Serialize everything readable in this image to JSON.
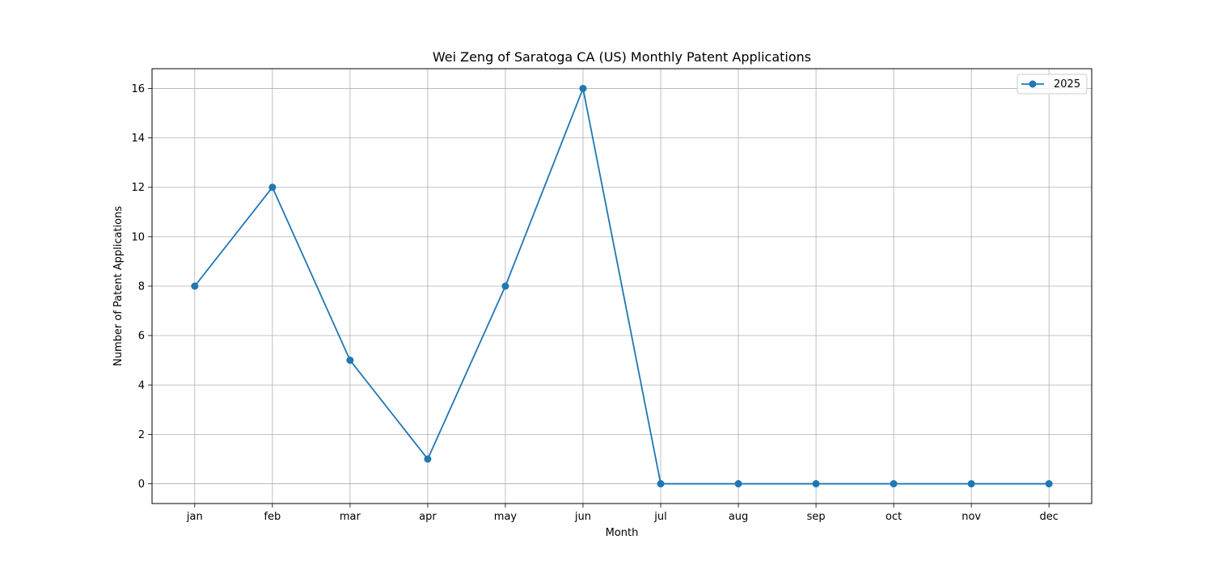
{
  "chart_data": {
    "type": "line",
    "title": "Wei Zeng of Saratoga CA (US) Monthly Patent Applications",
    "xlabel": "Month",
    "ylabel": "Number of Patent Applications",
    "categories": [
      "jan",
      "feb",
      "mar",
      "apr",
      "may",
      "jun",
      "jul",
      "aug",
      "sep",
      "oct",
      "nov",
      "dec"
    ],
    "series": [
      {
        "name": "2025",
        "values": [
          8,
          12,
          5,
          1,
          8,
          16,
          0,
          0,
          0,
          0,
          0,
          0
        ],
        "color": "#1f77b4",
        "marker": "circle"
      }
    ],
    "ylim": [
      -0.8,
      16.8
    ],
    "yticks": [
      0,
      2,
      4,
      6,
      8,
      10,
      12,
      14,
      16
    ],
    "grid": true,
    "legend_position": "top-right"
  }
}
